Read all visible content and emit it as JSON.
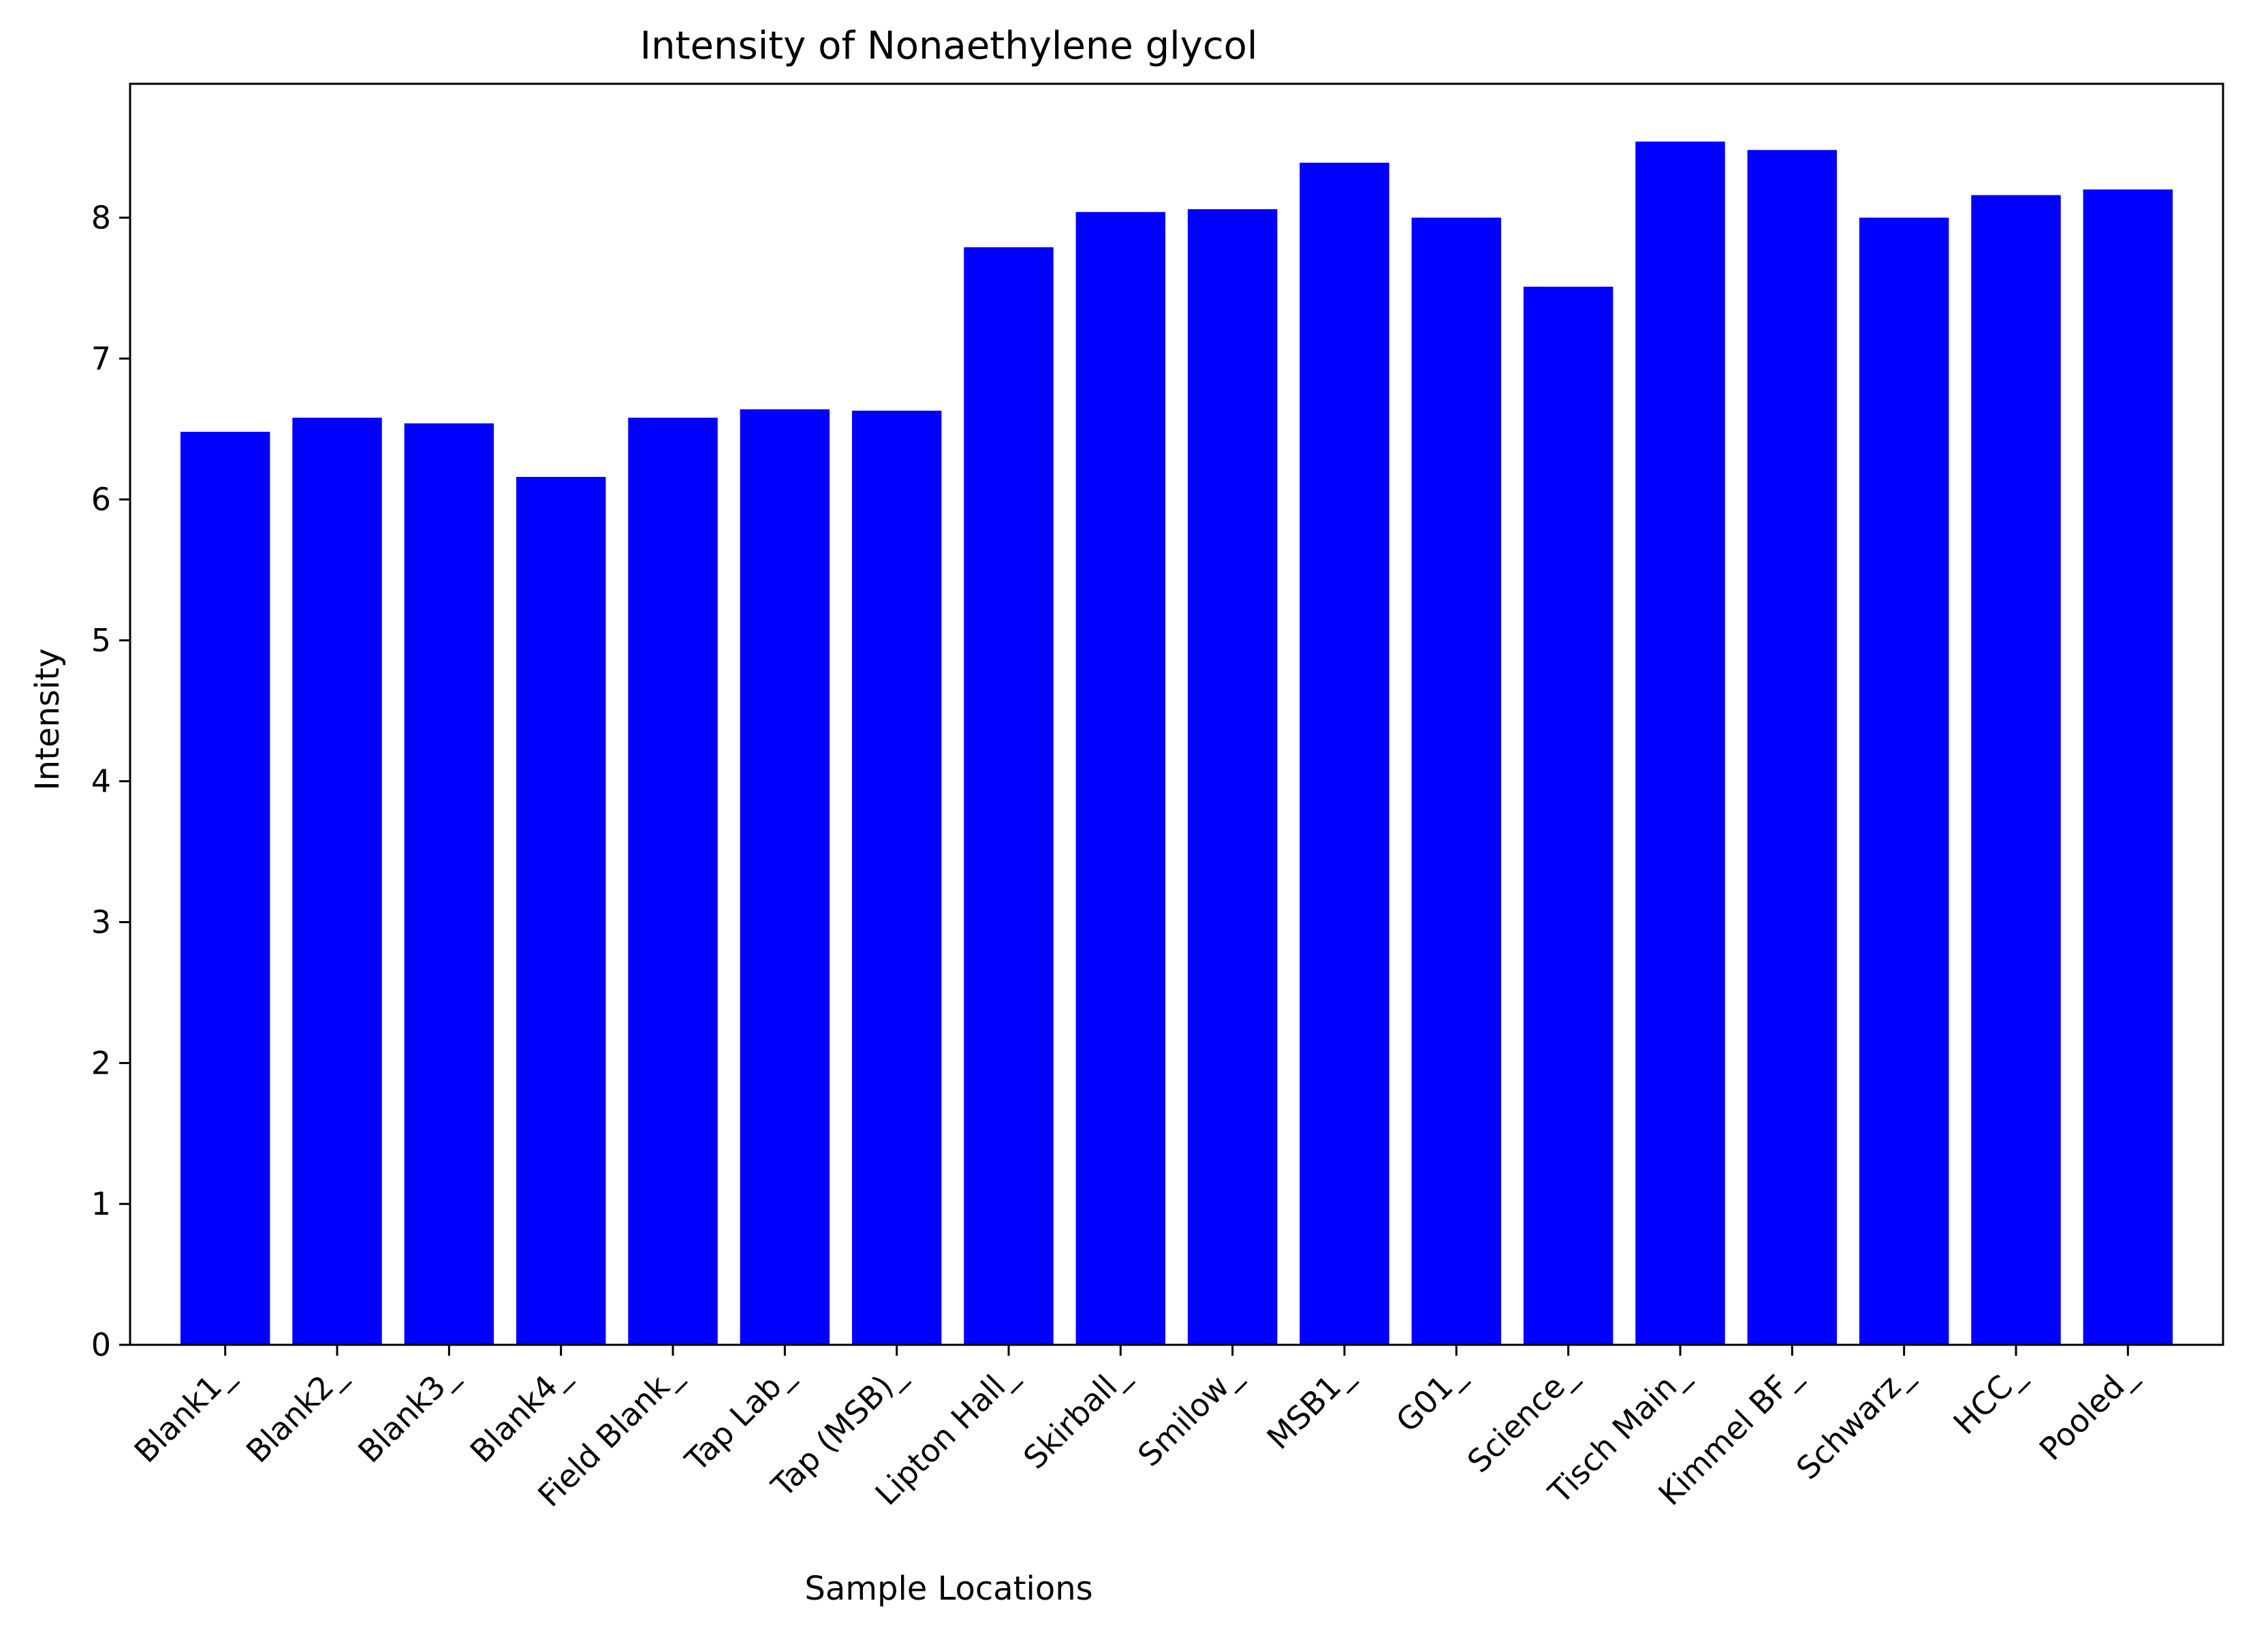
{
  "chart_data": {
    "type": "bar",
    "title": "Intensity of Nonaethylene glycol",
    "xlabel": "Sample Locations",
    "ylabel": "Intensity",
    "categories": [
      "Blank1_",
      "Blank2_",
      "Blank3_",
      "Blank4_",
      "Field Blank_",
      "Tap Lab_",
      "Tap (MSB)_",
      "Lipton Hall_",
      "Skirball_",
      "Smilow_",
      "MSB1_",
      "G01_",
      "Science_",
      "Tisch Main_",
      "Kimmel BF_",
      "Schwarz_",
      "HCC_",
      "Pooled_"
    ],
    "values": [
      6.48,
      6.58,
      6.54,
      6.16,
      6.58,
      6.64,
      6.63,
      7.79,
      8.04,
      8.06,
      8.39,
      8.0,
      7.51,
      8.54,
      8.48,
      8.0,
      8.16,
      8.2
    ],
    "ylim": [
      0,
      8.95
    ],
    "yticks": [
      0,
      1,
      2,
      3,
      4,
      5,
      6,
      7,
      8
    ],
    "bar_color": "#0000ff",
    "grid": false,
    "legend": "none"
  }
}
